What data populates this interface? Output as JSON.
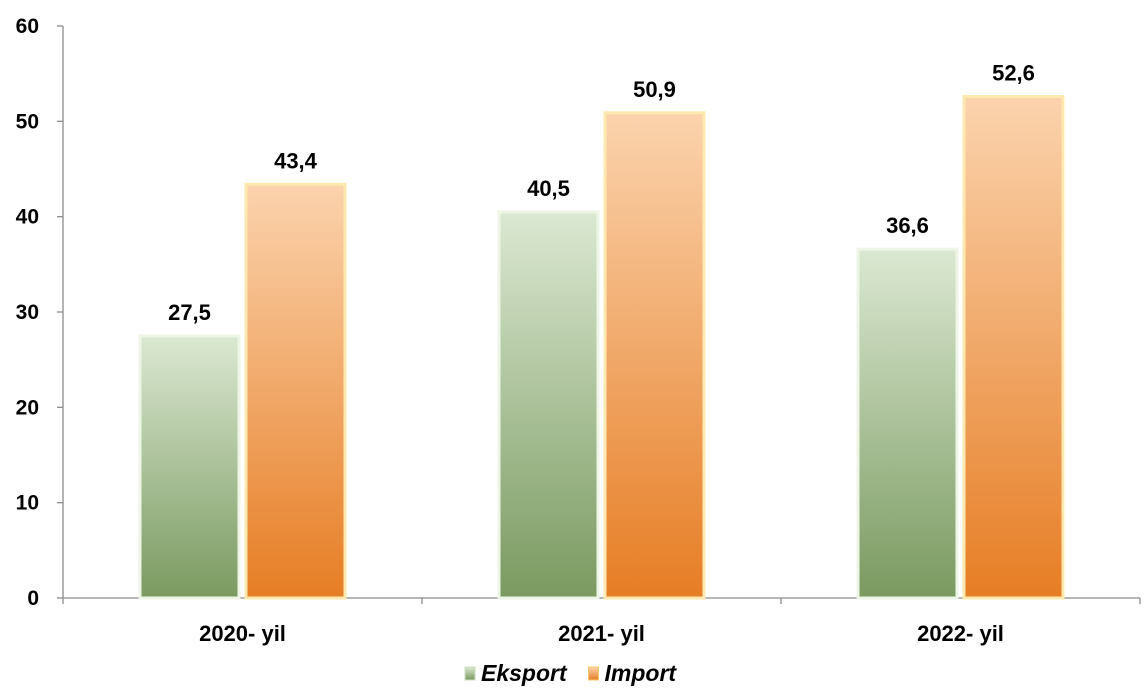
{
  "chart_data": {
    "type": "bar",
    "categories": [
      "2020- yil",
      "2021- yil",
      "2022- yil"
    ],
    "series": [
      {
        "name": "Eksport",
        "values": [
          27.5,
          40.5,
          36.6
        ],
        "value_labels": [
          "27,5",
          "40,5",
          "36,6"
        ],
        "color_top": "#dbe8d2",
        "color_bottom": "#7a9a60"
      },
      {
        "name": "Import",
        "values": [
          43.4,
          50.9,
          52.6
        ],
        "value_labels": [
          "43,4",
          "50,9",
          "52,6"
        ],
        "color_top": "#fbd3ad",
        "color_bottom": "#e67d24"
      }
    ],
    "y_ticks": [
      0,
      10,
      20,
      30,
      40,
      50,
      60
    ],
    "y_tick_labels": [
      "0",
      "10",
      "20",
      "30",
      "40",
      "50",
      "60"
    ],
    "ylim": [
      0,
      60
    ],
    "grid": false,
    "legend_position": "bottom-center",
    "title": "",
    "xlabel": "",
    "ylabel": ""
  }
}
